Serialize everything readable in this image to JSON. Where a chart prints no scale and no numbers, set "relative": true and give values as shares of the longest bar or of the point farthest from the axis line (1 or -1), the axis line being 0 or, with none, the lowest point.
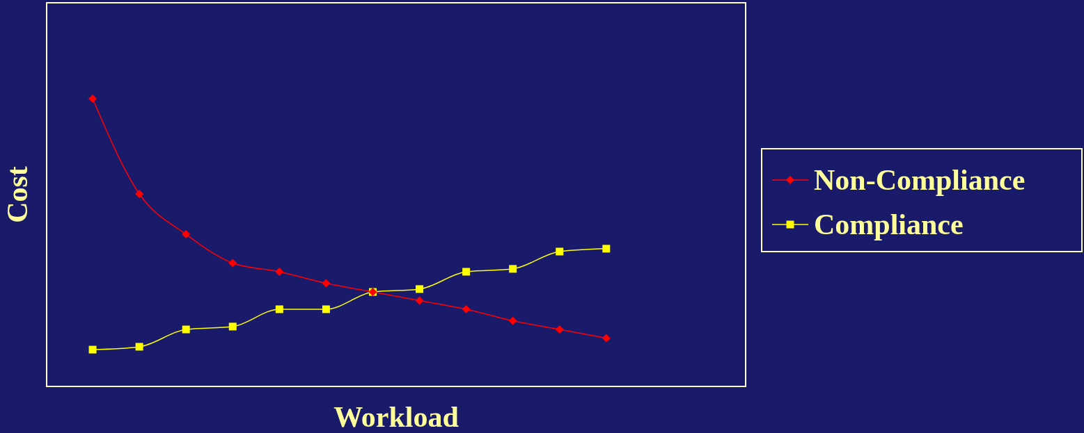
{
  "chart_data": {
    "type": "line",
    "relative": true,
    "xlabel": "Workload",
    "ylabel": "Cost",
    "legend": "right",
    "grid": false,
    "categories": [
      null,
      null,
      null,
      null,
      null,
      null,
      null,
      null,
      null,
      null,
      null,
      null
    ],
    "series": [
      {
        "name": "Non-Compliance",
        "color": "#ff0000",
        "marker": "diamond",
        "values": [
          1,
          0.67,
          0.53,
          0.43,
          0.4,
          0.36,
          0.33,
          0.3,
          0.27,
          0.23,
          0.2,
          0.17
        ]
      },
      {
        "name": "Compliance",
        "color": "#ffff00",
        "marker": "square",
        "values": [
          0.13,
          0.14,
          0.2,
          0.21,
          0.27,
          0.27,
          0.33,
          0.34,
          0.4,
          0.41,
          0.47,
          0.48
        ]
      }
    ]
  }
}
